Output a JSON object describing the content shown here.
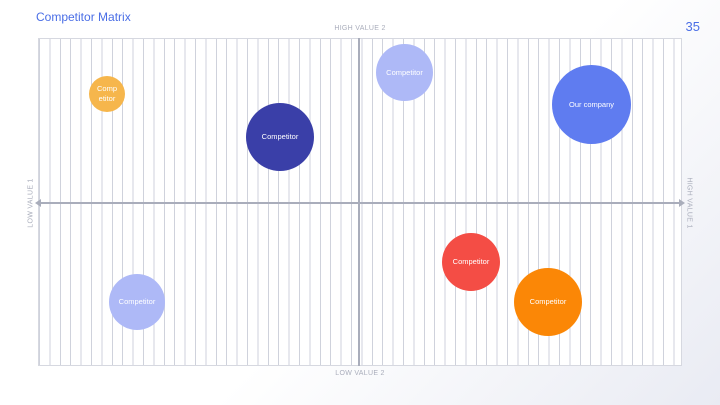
{
  "slide": {
    "title": "Competitor Matrix",
    "page_number": "35"
  },
  "axes": {
    "top": "HIGH VALUE 2",
    "bottom": "LOW VALUE 2",
    "left": "LOW VALUE 1",
    "right": "HIGH VALUE 1"
  },
  "bubbles": [
    {
      "label": "Competitor",
      "color": "#f6b64c"
    },
    {
      "label": "Competitor",
      "color": "#3a3fa8"
    },
    {
      "label": "Competitor",
      "color": "#aeb9f7"
    },
    {
      "label": "Our company",
      "color": "#5f7cf0"
    },
    {
      "label": "Competitor",
      "color": "#f44d45"
    },
    {
      "label": "Competitor",
      "color": "#fb8706"
    },
    {
      "label": "Competitor",
      "color": "#aeb9f7"
    }
  ]
}
